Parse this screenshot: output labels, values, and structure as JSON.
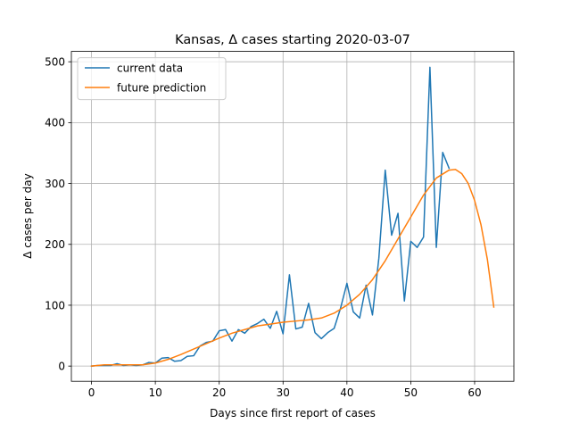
{
  "chart_data": {
    "type": "line",
    "title": "Kansas, Δ cases starting 2020-03-07",
    "xlabel": "Days since first report of cases",
    "ylabel": "Δ cases per day",
    "xlim": [
      -3.15,
      66.15
    ],
    "ylim": [
      -25,
      517
    ],
    "xticks": [
      0,
      10,
      20,
      30,
      40,
      50,
      60
    ],
    "yticks": [
      0,
      100,
      200,
      300,
      400,
      500
    ],
    "grid": true,
    "legend_position": "top-left",
    "series": [
      {
        "name": "current data",
        "color": "#1f77b4",
        "x": [
          0,
          1,
          2,
          3,
          4,
          5,
          6,
          7,
          8,
          9,
          10,
          11,
          12,
          13,
          14,
          15,
          16,
          17,
          18,
          19,
          20,
          21,
          22,
          23,
          24,
          25,
          26,
          27,
          28,
          29,
          30,
          31,
          32,
          33,
          34,
          35,
          36,
          37,
          38,
          39,
          40,
          41,
          42,
          43,
          44,
          45,
          46,
          47,
          48,
          49,
          50,
          51,
          52,
          53,
          54,
          55,
          56
        ],
        "y": [
          0,
          1,
          1,
          1,
          4,
          1,
          2,
          1,
          2,
          6,
          5,
          13,
          14,
          8,
          9,
          16,
          17,
          33,
          39,
          41,
          58,
          60,
          41,
          60,
          54,
          65,
          70,
          77,
          62,
          90,
          53,
          150,
          61,
          64,
          103,
          55,
          45,
          55,
          62,
          95,
          136,
          89,
          79,
          133,
          84,
          177,
          322,
          215,
          251,
          107,
          205,
          195,
          212,
          491,
          195,
          351,
          325
        ]
      },
      {
        "name": "future prediction",
        "color": "#ff7f0e",
        "x": [
          0,
          2,
          4,
          6,
          8,
          10,
          12,
          14,
          16,
          18,
          20,
          22,
          24,
          26,
          28,
          30,
          32,
          34,
          36,
          38,
          40,
          42,
          44,
          46,
          48,
          50,
          52,
          54,
          56,
          57,
          58,
          59,
          60,
          61,
          62,
          63
        ],
        "y": [
          0,
          2,
          2,
          2,
          2,
          5,
          11,
          19,
          28,
          37,
          46,
          54,
          60,
          66,
          69,
          72,
          74,
          76,
          79,
          87,
          100,
          118,
          142,
          173,
          209,
          245,
          281,
          309,
          322,
          323,
          316,
          300,
          272,
          232,
          175,
          97
        ]
      }
    ]
  }
}
